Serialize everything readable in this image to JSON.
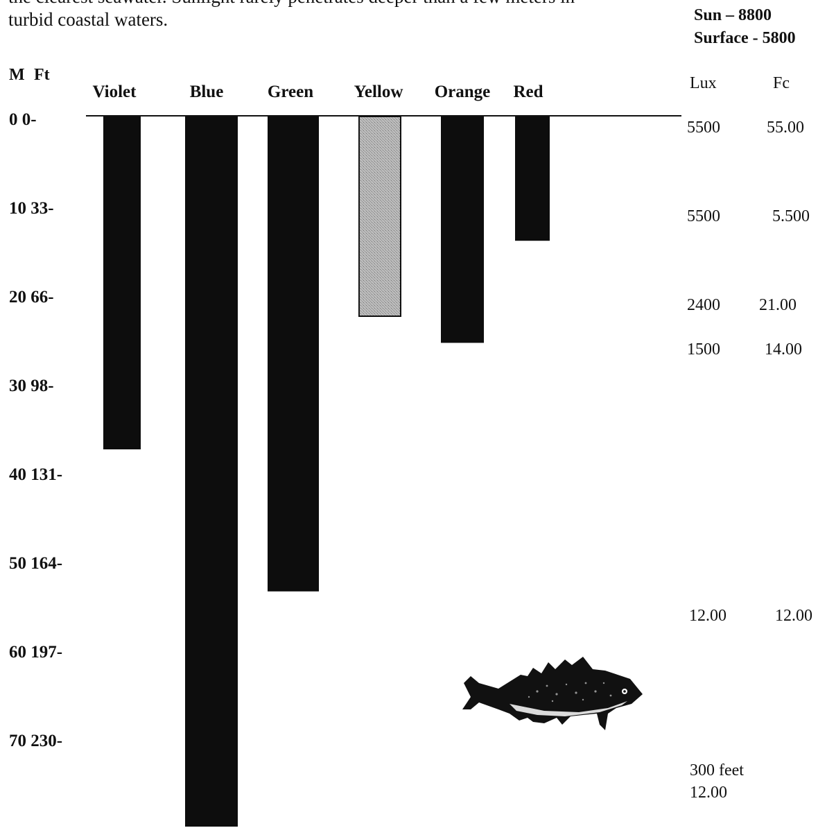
{
  "intro": {
    "line1": "the clearest seawater. Sunlight rarely penetrates deeper than a few meters in",
    "line2": "turbid coastal waters."
  },
  "light_levels": {
    "sun": "Sun – 8800",
    "surface": "Surface - 5800"
  },
  "right_table": {
    "lux_header": "Lux",
    "fc_header": "Fc",
    "rows": [
      {
        "lux": "5500",
        "fc": "55.00"
      },
      {
        "lux": "5500",
        "fc": "5.500"
      },
      {
        "lux": "2400",
        "fc": "21.00"
      },
      {
        "lux": "1500",
        "fc": "14.00"
      },
      {
        "lux": "12.00",
        "fc": "12.00"
      }
    ],
    "footnote_line1": "300 feet",
    "footnote_line2": "12.00"
  },
  "fish": {
    "icon": "fish-icon"
  },
  "chart_data": {
    "type": "bar",
    "orientation": "vertical-down",
    "title": "",
    "xlabel": "",
    "ylabel": "M  Ft",
    "y_axis_labels": [
      "M",
      "Ft"
    ],
    "y_ticks": [
      {
        "m": 0,
        "label": "0   0-"
      },
      {
        "m": 10,
        "label": "10 33-"
      },
      {
        "m": 20,
        "label": "20 66-"
      },
      {
        "m": 30,
        "label": "30 98-"
      },
      {
        "m": 40,
        "label": "40 131-"
      },
      {
        "m": 50,
        "label": "50 164-"
      },
      {
        "m": 60,
        "label": "60 197-"
      },
      {
        "m": 70,
        "label": "70 230-"
      }
    ],
    "ylim": [
      0,
      80
    ],
    "y_unit": "meters",
    "categories": [
      "Violet",
      "Blue",
      "Green",
      "Yellow",
      "Orange",
      "Red"
    ],
    "values": [
      37.5,
      80,
      53.5,
      22.5,
      25.5,
      14
    ],
    "bar_colors": [
      "#0d0d0d",
      "#0d0d0d",
      "#0d0d0d",
      "#a9a9a9",
      "#0d0d0d",
      "#0d0d0d"
    ],
    "grid": false,
    "legend": "none"
  }
}
